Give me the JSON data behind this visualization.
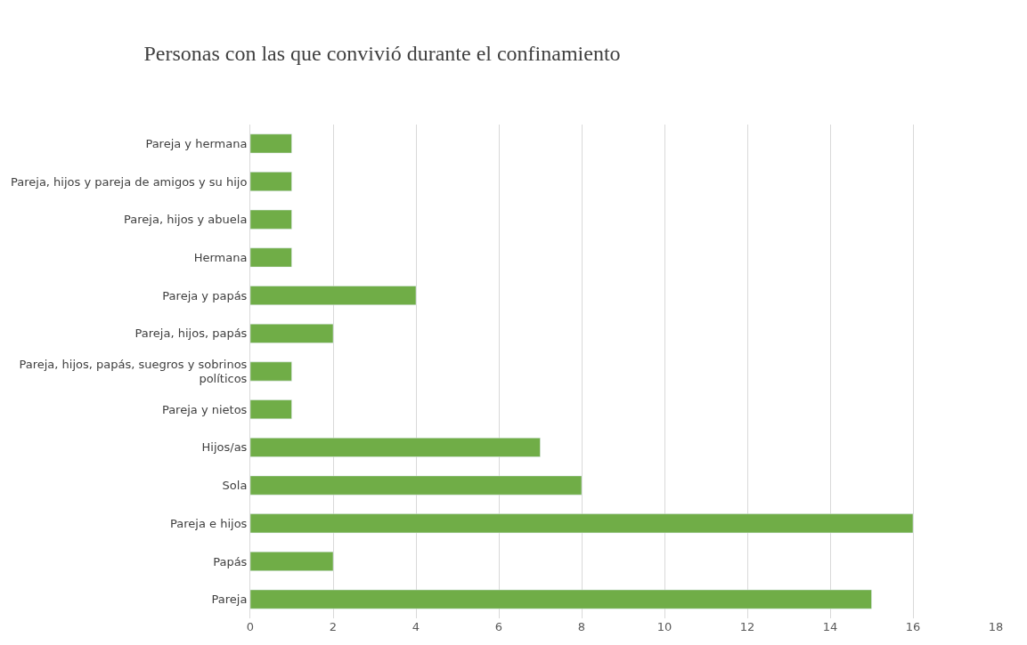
{
  "chart_data": {
    "type": "bar",
    "orientation": "horizontal",
    "title": "Personas con las que convivió durante el confinamiento",
    "categories": [
      "Pareja y hermana",
      "Pareja, hijos y pareja de amigos y su hijo",
      "Pareja, hijos y abuela",
      "Hermana",
      "Pareja y papás",
      "Pareja, hijos, papás",
      "Pareja, hijos, papás, suegros y sobrinos políticos",
      "Pareja y nietos",
      "Hijos/as",
      "Sola",
      "Pareja e hijos",
      "Papás",
      "Pareja"
    ],
    "values": [
      1,
      1,
      1,
      1,
      4,
      2,
      1,
      1,
      7,
      8,
      16,
      2,
      15
    ],
    "color": "#70ad47",
    "xlim": [
      0,
      18
    ],
    "xticks": [
      0,
      2,
      4,
      6,
      8,
      10,
      12,
      14,
      16,
      18
    ],
    "grid": "x",
    "legend": false
  }
}
